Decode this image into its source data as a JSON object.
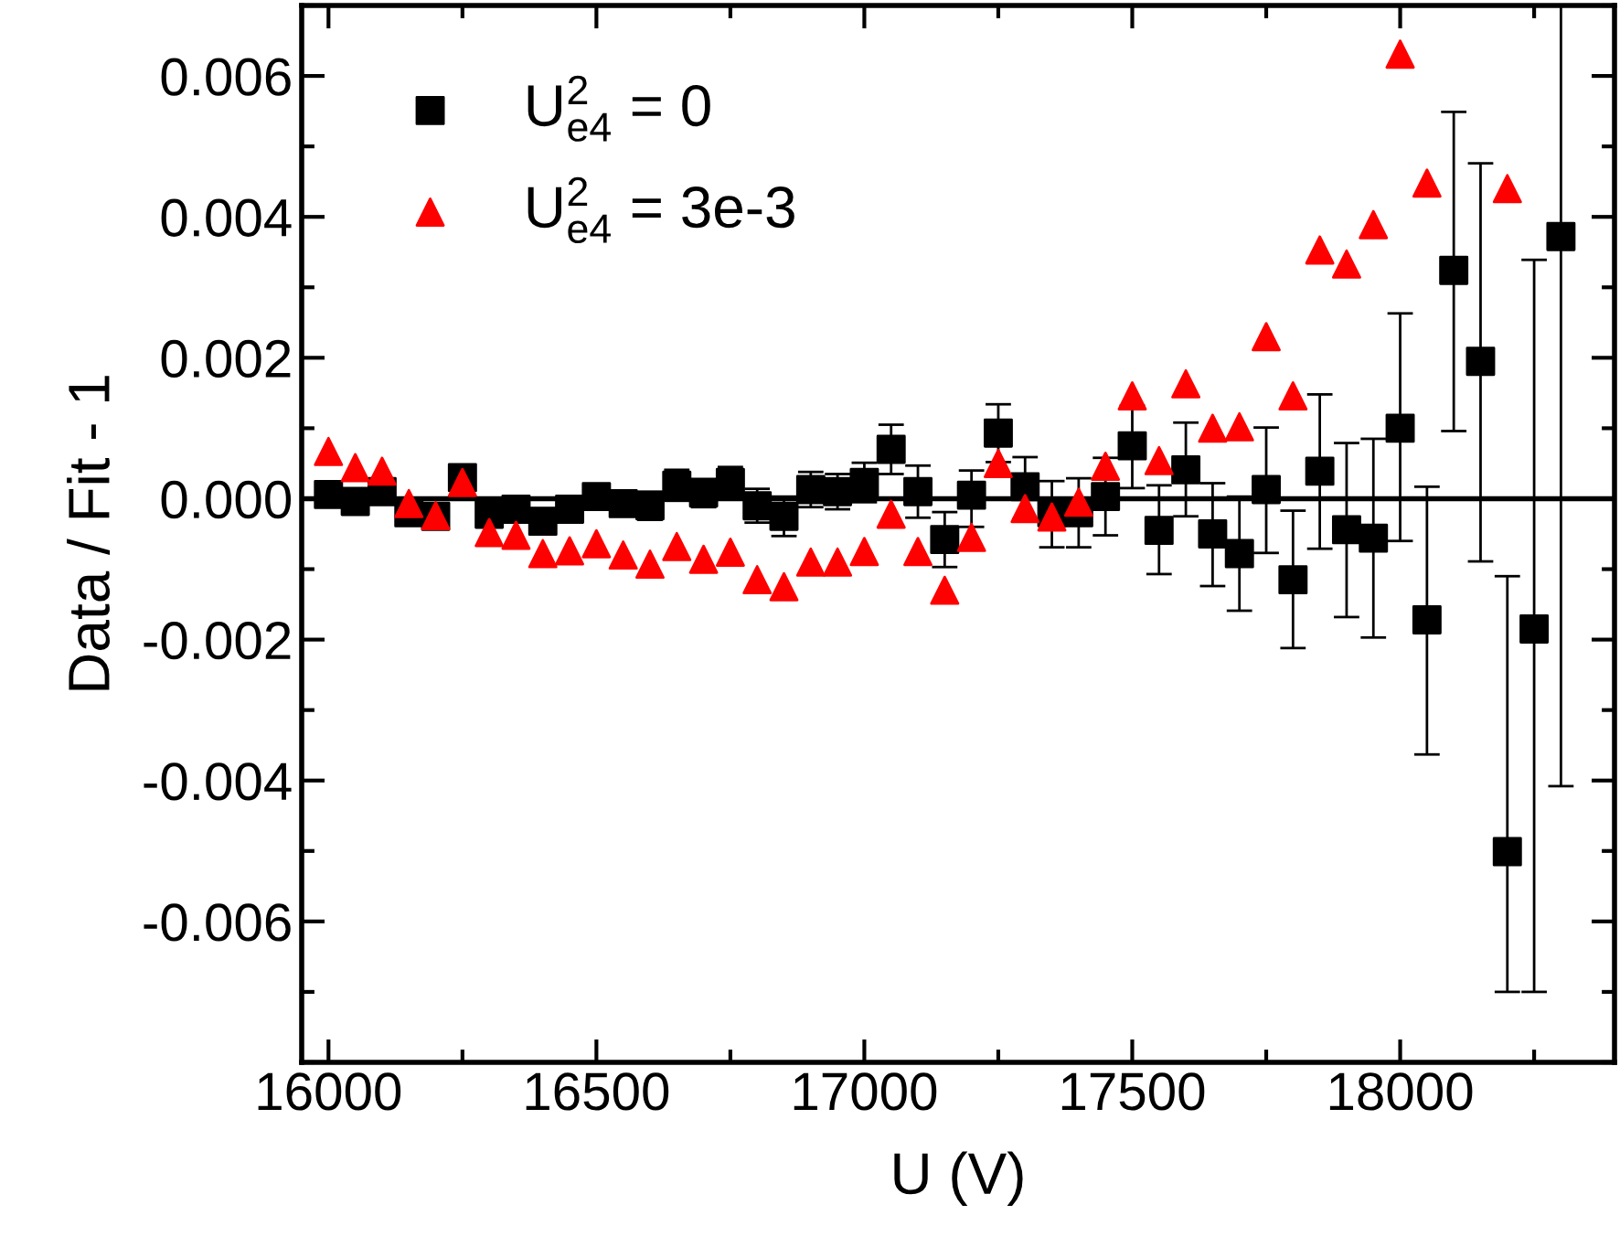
{
  "chart_data": {
    "type": "scatter",
    "xlabel": "U (V)",
    "ylabel": "Data / Fit - 1",
    "xlim": [
      15950,
      18400
    ],
    "xticks": [
      16000,
      16500,
      17000,
      17500,
      18000
    ],
    "ylim": [
      -0.007,
      0.007
    ],
    "yticks": [
      {
        "value": -0.006,
        "label": "-0.006"
      },
      {
        "value": -0.004,
        "label": "-0.004"
      },
      {
        "value": -0.002,
        "label": "-0.002"
      },
      {
        "value": 0,
        "label": "0.000"
      },
      {
        "value": 0.002,
        "label": "0.002"
      },
      {
        "value": 0.004,
        "label": "0.004"
      },
      {
        "value": 0.006,
        "label": "0.006"
      }
    ],
    "grid": false,
    "legend": "top left",
    "ref_lines": [
      {
        "axis": "y",
        "value": 0,
        "color": "#000000",
        "line_style": "solid"
      }
    ],
    "series": [
      {
        "name": "U$^{2}$$_{e4}$ = 0",
        "color": "#000000",
        "marker": "square",
        "x": [
          16000,
          16050,
          16100,
          16150,
          16200,
          16250,
          16300,
          16350,
          16400,
          16450,
          16500,
          16550,
          16600,
          16650,
          16700,
          16750,
          16800,
          16850,
          16900,
          16950,
          17000,
          17050,
          17100,
          17150,
          17200,
          17250,
          17300,
          17350,
          17400,
          17450,
          17500,
          17550,
          17600,
          17650,
          17700,
          17750,
          17800,
          17850,
          17900,
          17950,
          18000,
          18050,
          18100,
          18150,
          18200,
          18250,
          18300
        ],
        "values": [
          6e-05,
          -4e-05,
          0.0001,
          -0.0002,
          -0.00025,
          0.0003,
          -0.00022,
          -0.00015,
          -0.00032,
          -0.00015,
          3e-05,
          -7e-05,
          -0.0001,
          0.00019,
          8e-05,
          0.00023,
          -0.0001,
          -0.00025,
          0.00013,
          0.0001,
          0.00023,
          0.0007,
          0.0001,
          -0.00058,
          5e-05,
          0.00093,
          0.00017,
          -0.0002,
          -0.0002,
          3e-05,
          0.00075,
          -0.00045,
          0.00041,
          -0.0005,
          -0.00078,
          0.00013,
          -0.00115,
          0.00039,
          -0.00044,
          -0.00056,
          0.001,
          -0.00172,
          0.00324,
          0.00195,
          -0.00501,
          -0.00185,
          0.00372
        ],
        "errors": [
          5e-05,
          8e-05,
          0.0001,
          0.0001,
          0.0001,
          0.00015,
          0.00015,
          0.00015,
          0.00018,
          0.00015,
          0.00015,
          0.00017,
          0.0002,
          0.00022,
          0.0002,
          0.00022,
          0.00024,
          0.00028,
          0.00025,
          0.00025,
          0.00028,
          0.00035,
          0.00037,
          [
            -0.00097,
            -0.00019
          ],
          [
            -0.0004,
            0.0004
          ],
          [
            0.00052,
            0.00134
          ],
          [
            -0.00029,
            0.00059
          ],
          [
            -0.00069,
            0.00025
          ],
          [
            -0.00069,
            0.00029
          ],
          [
            -0.00052,
            0.00058
          ],
          [
            0.00015,
            0.00132
          ],
          [
            -0.00107,
            0.00019
          ],
          [
            -0.00025,
            0.00108
          ],
          [
            -0.00124,
            0.00022
          ],
          [
            -0.00159,
            3e-05
          ],
          [
            -0.00077,
            0.00101
          ],
          [
            -0.00212,
            -0.00017
          ],
          [
            -0.00071,
            0.00148
          ],
          [
            -0.00168,
            0.00079
          ],
          [
            -0.00197,
            0.00085
          ],
          [
            -0.0006,
            0.00263
          ],
          [
            -0.00363,
            0.00017
          ],
          [
            0.00096,
            0.00549
          ],
          [
            -0.00089,
            0.00476
          ],
          [
            -0.007,
            -0.0011
          ],
          [
            -0.007,
            0.00339
          ],
          [
            -0.00408,
            0.007
          ]
        ]
      },
      {
        "name": "U$^{2}$$_{e4}$ = 3e-3",
        "color": "#ff0000",
        "marker": "triangle",
        "x": [
          16000,
          16050,
          16100,
          16150,
          16200,
          16250,
          16300,
          16350,
          16400,
          16450,
          16500,
          16550,
          16600,
          16650,
          16700,
          16750,
          16800,
          16850,
          16900,
          16950,
          17000,
          17050,
          17100,
          17150,
          17200,
          17250,
          17300,
          17350,
          17400,
          17450,
          17500,
          17550,
          17600,
          17650,
          17700,
          17750,
          17800,
          17850,
          17900,
          17950,
          18000,
          18050,
          18100,
          18150,
          18200
        ],
        "values": [
          0.00067,
          0.00044,
          0.00039,
          -7e-05,
          -0.00024,
          0.00023,
          -0.00048,
          -0.00052,
          -0.00078,
          -0.00074,
          -0.00064,
          -0.0008,
          -0.00093,
          -0.00068,
          -0.00086,
          -0.00076,
          -0.00115,
          -0.00125,
          -0.0009,
          -0.0009,
          -0.00075,
          -0.00022,
          -0.00075,
          -0.0013,
          -0.00055,
          0.0005,
          -0.00014,
          -0.00026,
          -5e-05,
          0.00046,
          0.00146,
          0.00054,
          0.00163,
          0.001,
          0.00102,
          0.0023,
          0.00146,
          0.00353,
          0.00333,
          0.00389,
          0.00631,
          0.00448,
          null,
          null,
          0.0044
        ]
      }
    ]
  }
}
